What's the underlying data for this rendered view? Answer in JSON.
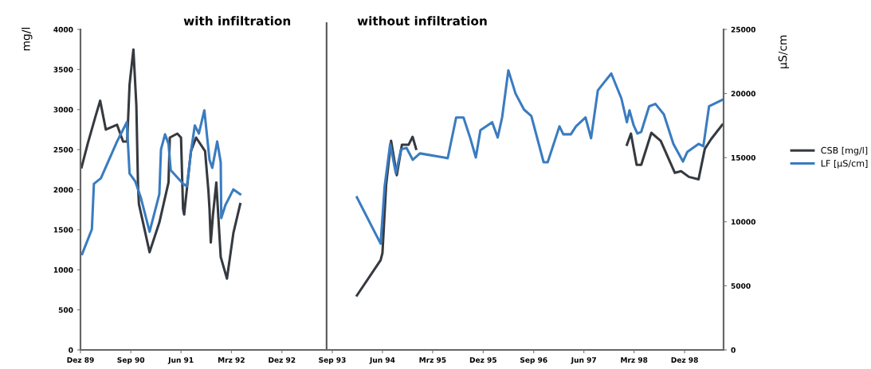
{
  "chart_data": {
    "type": "line",
    "annotations": [
      "with infiltration",
      "without infiltration"
    ],
    "ylabel": "mg/l",
    "y2label": "µS/cm",
    "series": [
      {
        "name": "CSB [mg/l]",
        "color": "#353a40",
        "axis": "y",
        "x": [
          "1989-12-07",
          "1990-01-10",
          "1990-02-20",
          "1990-03-18",
          "1990-04-18",
          "1990-06-18",
          "1990-07-21",
          "1990-08-12",
          "1990-08-25",
          "1990-09-15",
          "1990-10-01",
          "1990-10-10",
          "1990-10-15",
          "1990-12-12",
          "1991-02-03",
          "1991-03-25",
          "1991-04-01",
          "1991-05-12",
          "1991-06-01",
          "1991-06-12",
          "1991-06-18",
          "1991-07-25",
          "1991-08-22",
          "1991-10-10",
          "1991-10-28",
          "1991-11-03",
          "1991-11-10",
          "1991-11-22",
          "1991-12-10",
          "1992-01-03",
          "1992-02-06",
          "1992-03-12",
          "1992-04-18",
          "1993-01-01",
          "1994-01-13",
          "1994-05-22",
          "1994-06-01",
          "1994-06-21",
          "1994-07-18",
          "1994-08-18",
          "1994-09-15",
          "1994-10-21",
          "1994-11-12",
          "1994-12-01",
          "1996-06-01",
          "1998-01-21",
          "1998-02-12",
          "1998-03-15",
          "1998-04-09",
          "1998-06-03",
          "1998-07-24",
          "1998-10-09",
          "1998-11-12",
          "1998-12-24",
          "1999-02-15",
          "1999-03-21",
          "1999-04-24",
          "1999-06-24"
        ],
        "values": [
          2280,
          2580,
          2910,
          3110,
          2750,
          2810,
          2600,
          2600,
          3310,
          3750,
          3050,
          2060,
          1820,
          1220,
          1590,
          2090,
          2650,
          2700,
          2650,
          1760,
          1690,
          2480,
          2650,
          2480,
          1990,
          1760,
          1340,
          1690,
          2090,
          1160,
          890,
          1460,
          1820,
          null,
          680,
          1120,
          1210,
          2060,
          2610,
          2180,
          2560,
          2560,
          2660,
          2510,
          null,
          2560,
          2700,
          2310,
          2310,
          2710,
          2610,
          2210,
          2230,
          2160,
          2130,
          2510,
          2630,
          2810
        ]
      },
      {
        "name": "LF [µS/cm]",
        "color": "#3a7cc0",
        "axis": "y2",
        "x": [
          "1989-12-10",
          "1990-02-01",
          "1990-02-12",
          "1990-03-22",
          "1990-06-18",
          "1990-08-10",
          "1990-08-25",
          "1990-09-25",
          "1990-10-25",
          "1990-12-12",
          "1991-02-03",
          "1991-02-12",
          "1991-03-06",
          "1991-03-25",
          "1991-04-06",
          "1991-06-12",
          "1991-07-03",
          "1991-07-25",
          "1991-08-15",
          "1991-09-06",
          "1991-10-06",
          "1991-11-03",
          "1991-11-18",
          "1991-12-15",
          "1992-01-03",
          "1992-01-06",
          "1992-01-28",
          "1992-03-12",
          "1992-04-18",
          "1993-01-01",
          "1994-01-13",
          "1994-05-22",
          "1994-06-13",
          "1994-07-13",
          "1994-08-13",
          "1994-09-10",
          "1994-10-10",
          "1994-11-13",
          "1994-12-22",
          "1995-05-01",
          "1995-05-22",
          "1995-07-07",
          "1995-08-16",
          "1995-09-22",
          "1995-10-22",
          "1995-11-16",
          "1996-01-19",
          "1996-02-18",
          "1996-03-13",
          "1996-04-16",
          "1996-05-25",
          "1996-07-10",
          "1996-08-19",
          "1996-10-25",
          "1996-11-16",
          "1997-01-19",
          "1997-02-09",
          "1997-03-22",
          "1997-04-19",
          "1997-06-10",
          "1997-07-10",
          "1997-08-16",
          "1997-09-19",
          "1997-10-28",
          "1997-12-22",
          "1998-01-21",
          "1998-02-04",
          "1998-02-27",
          "1998-03-19",
          "1998-04-09",
          "1998-05-22",
          "1998-06-25",
          "1998-08-10",
          "1998-10-01",
          "1998-11-22",
          "1998-12-16",
          "1999-02-15",
          "1999-03-13",
          "1999-04-13",
          "1999-06-24"
        ],
        "values": [
          7480,
          9410,
          12960,
          13390,
          16260,
          17760,
          13770,
          13150,
          11900,
          9220,
          12150,
          15640,
          16820,
          16070,
          14020,
          12960,
          12770,
          15450,
          17510,
          16880,
          18690,
          14830,
          14200,
          16260,
          14640,
          10280,
          11280,
          12520,
          12150,
          null,
          11900,
          8290,
          12770,
          16070,
          13770,
          15640,
          15760,
          14830,
          15330,
          15010,
          14950,
          18130,
          18130,
          16510,
          15010,
          17130,
          17760,
          16570,
          18130,
          21810,
          20000,
          18750,
          18250,
          14640,
          14640,
          17440,
          16820,
          16820,
          17440,
          18130,
          16510,
          20250,
          20870,
          21560,
          19620,
          17760,
          18690,
          17510,
          16880,
          17010,
          19000,
          19190,
          18380,
          16070,
          14700,
          15450,
          16070,
          15890,
          19000,
          19500
        ]
      }
    ],
    "xlim": [
      "1989-12-01",
      "1999-07-01"
    ],
    "xticks": [
      {
        "value": "1989-12-01",
        "label": "Dez 89"
      },
      {
        "value": "1990-09-01",
        "label": "Sep 90"
      },
      {
        "value": "1991-06-01",
        "label": "Jun 91"
      },
      {
        "value": "1992-03-01",
        "label": "Mrz 92"
      },
      {
        "value": "1992-12-01",
        "label": "Dez 92"
      },
      {
        "value": "1993-09-01",
        "label": "Sep 93"
      },
      {
        "value": "1994-06-01",
        "label": "Jun 94"
      },
      {
        "value": "1995-03-01",
        "label": "Mrz 95"
      },
      {
        "value": "1995-12-01",
        "label": "Dez 95"
      },
      {
        "value": "1996-09-01",
        "label": "Sep 96"
      },
      {
        "value": "1997-06-01",
        "label": "Jun 97"
      },
      {
        "value": "1998-03-01",
        "label": "Mrz 98"
      },
      {
        "value": "1998-12-01",
        "label": "Dez 98"
      }
    ],
    "ylim": [
      0,
      4000
    ],
    "yticks": [
      0,
      500,
      1000,
      1500,
      2000,
      2500,
      3000,
      3500,
      4000
    ],
    "y2lim": [
      0,
      25000
    ],
    "y2ticks": [
      0,
      5000,
      10000,
      15000,
      20000,
      25000
    ],
    "ref_lines": [
      {
        "axis": "x",
        "value": "1993-08-01",
        "color": "#555555"
      }
    ],
    "legend": "right",
    "grid": false,
    "marker": "none",
    "line_style": "solid"
  }
}
